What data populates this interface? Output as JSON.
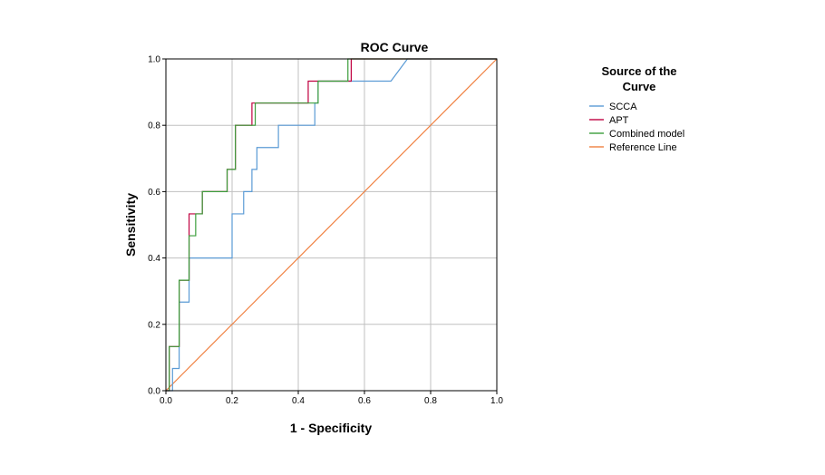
{
  "chart_data": {
    "type": "line",
    "title": "ROC Curve",
    "xlabel": "1 - Specificity",
    "ylabel": "Sensitivity",
    "xlim": [
      0,
      1
    ],
    "ylim": [
      0,
      1
    ],
    "grid": true,
    "xticks": [
      "0.0",
      "0.2",
      "0.4",
      "0.6",
      "0.8",
      "1.0"
    ],
    "yticks": [
      "0.0",
      "0.2",
      "0.4",
      "0.6",
      "0.8",
      "1.0"
    ],
    "legend_title": "Source of the Curve",
    "legend_title_lines": [
      "Source of the",
      "Curve"
    ],
    "legend_position": "right",
    "series": [
      {
        "name": "SCCA",
        "color": "#5b9bd5",
        "x": [
          0,
          0.02,
          0.02,
          0.04,
          0.04,
          0.07,
          0.07,
          0.2,
          0.2,
          0.235,
          0.235,
          0.26,
          0.26,
          0.275,
          0.275,
          0.34,
          0.34,
          0.45,
          0.45,
          0.46,
          0.46,
          0.52,
          0.52,
          0.68,
          0.73,
          1.0
        ],
        "y": [
          0,
          0,
          0.067,
          0.067,
          0.267,
          0.267,
          0.4,
          0.4,
          0.533,
          0.533,
          0.6,
          0.6,
          0.667,
          0.667,
          0.733,
          0.733,
          0.8,
          0.8,
          0.867,
          0.867,
          0.933,
          0.933,
          0.933,
          0.933,
          1.0,
          1.0
        ]
      },
      {
        "name": "APT",
        "color": "#c00040",
        "x": [
          0,
          0.01,
          0.01,
          0.04,
          0.04,
          0.07,
          0.07,
          0.11,
          0.11,
          0.185,
          0.185,
          0.21,
          0.21,
          0.26,
          0.26,
          0.43,
          0.43,
          0.475,
          0.475,
          0.56,
          0.56,
          1.0
        ],
        "y": [
          0,
          0,
          0.133,
          0.133,
          0.333,
          0.333,
          0.533,
          0.533,
          0.6,
          0.6,
          0.667,
          0.667,
          0.8,
          0.8,
          0.867,
          0.867,
          0.933,
          0.933,
          0.933,
          0.933,
          1.0,
          1.0
        ]
      },
      {
        "name": "Combined model",
        "color": "#3b9e3b",
        "x": [
          0,
          0.01,
          0.01,
          0.04,
          0.04,
          0.07,
          0.07,
          0.09,
          0.09,
          0.11,
          0.11,
          0.185,
          0.185,
          0.21,
          0.21,
          0.27,
          0.27,
          0.44,
          0.44,
          0.46,
          0.46,
          0.55,
          0.55,
          1.0
        ],
        "y": [
          0,
          0,
          0.133,
          0.133,
          0.333,
          0.333,
          0.467,
          0.467,
          0.533,
          0.533,
          0.6,
          0.6,
          0.667,
          0.667,
          0.8,
          0.8,
          0.867,
          0.867,
          0.867,
          0.867,
          0.933,
          0.933,
          1.0,
          1.0
        ]
      },
      {
        "name": "Reference Line",
        "color": "#f08040",
        "x": [
          0,
          1.0
        ],
        "y": [
          0,
          1.0
        ]
      }
    ],
    "colors": {
      "grid": "#c0c0c0",
      "axis": "#000000",
      "background": "#ffffff"
    }
  }
}
